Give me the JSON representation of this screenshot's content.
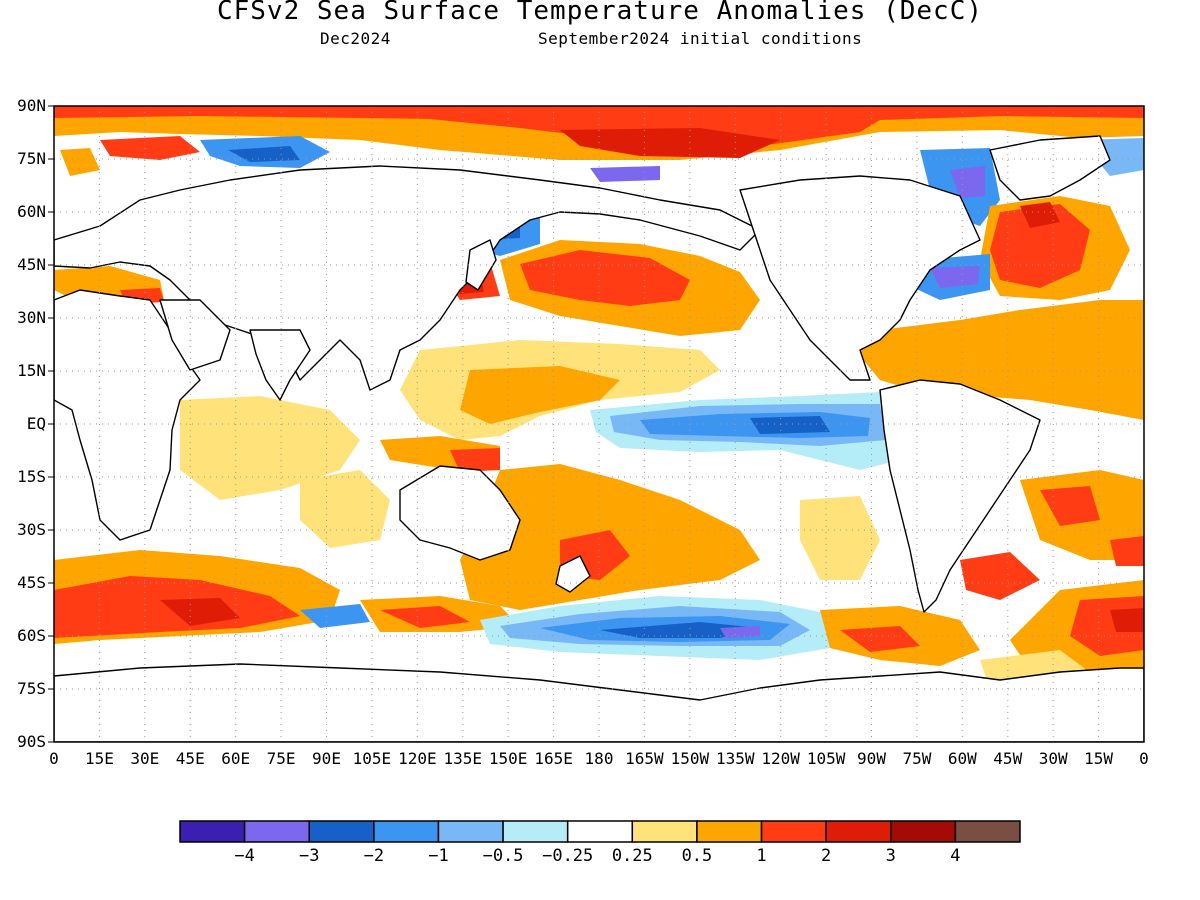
{
  "title": "CFSv2 Sea Surface Temperature Anomalies (DecC)",
  "subtitle_left": "Dec2024",
  "subtitle_right": "September2024 initial conditions",
  "lat_labels": [
    "90N",
    "75N",
    "60N",
    "45N",
    "30N",
    "15N",
    "EQ",
    "15S",
    "30S",
    "45S",
    "60S",
    "75S",
    "90S"
  ],
  "lon_labels": [
    "0",
    "15E",
    "30E",
    "45E",
    "60E",
    "75E",
    "90E",
    "105E",
    "120E",
    "135E",
    "150E",
    "165E",
    "180",
    "165W",
    "150W",
    "135W",
    "120W",
    "105W",
    "90W",
    "75W",
    "60W",
    "45W",
    "30W",
    "15W",
    "0"
  ],
  "colorbar": {
    "colors": [
      "#3a1fb0",
      "#7b68ee",
      "#1561c7",
      "#3c95f0",
      "#79b8f7",
      "#b4ecf8",
      "#ffffff",
      "#ffe37a",
      "#ffa500",
      "#ff3c14",
      "#df1c06",
      "#a50b05",
      "#7b4e43"
    ],
    "labels": [
      "-4",
      "-3",
      "-2",
      "-1",
      "-0.5",
      "-0.25",
      "0.25",
      "0.5",
      "1",
      "2",
      "3",
      "4"
    ]
  },
  "anomaly_regions": [
    {
      "region": "Arctic Ocean north of Siberia",
      "anomaly_class": "2"
    },
    {
      "region": "North Pacific (Kuroshio extension)",
      "anomaly_class": "1"
    },
    {
      "region": "Equatorial eastern Pacific",
      "anomaly_class": "-1"
    },
    {
      "region": "Subtropical North Atlantic",
      "anomaly_class": "0.5"
    },
    {
      "region": "Southwest Pacific / Tasman Sea",
      "anomaly_class": "0.5"
    },
    {
      "region": "Southern Ocean south of Indian Ocean",
      "anomaly_class": "1"
    },
    {
      "region": "Southern Ocean south of Pacific",
      "anomaly_class": "-1"
    },
    {
      "region": "Northwest Atlantic near Nova Scotia",
      "anomaly_class": "-2"
    }
  ]
}
